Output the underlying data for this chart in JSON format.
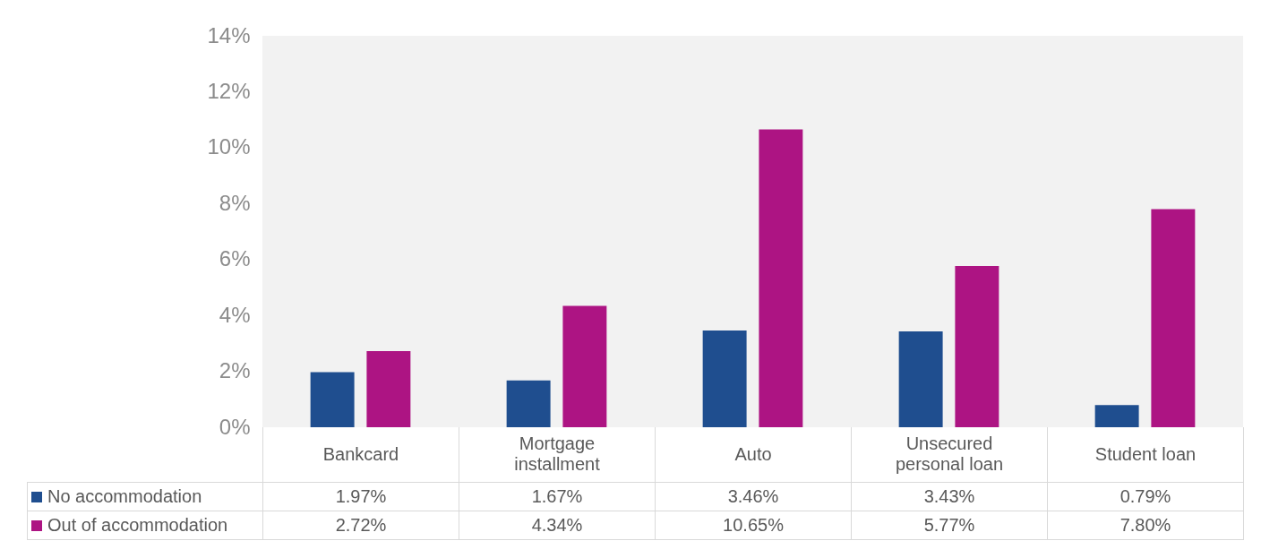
{
  "chart_data": {
    "type": "bar",
    "categories": [
      "Bankcard",
      "Mortgage installment",
      "Auto",
      "Unsecured personal loan",
      "Student loan"
    ],
    "series": [
      {
        "name": "No accommodation",
        "color": "#1f4e8f",
        "values": [
          1.97,
          1.67,
          3.46,
          3.43,
          0.79
        ],
        "value_labels": [
          "1.97%",
          "1.67%",
          "3.46%",
          "3.43%",
          "0.79%"
        ]
      },
      {
        "name": "Out of accommodation",
        "color": "#ad1483",
        "values": [
          2.72,
          4.34,
          10.65,
          5.77,
          7.8
        ],
        "value_labels": [
          "2.72%",
          "4.34%",
          "10.65%",
          "5.77%",
          "7.80%"
        ]
      }
    ],
    "ylim": [
      0,
      14
    ],
    "yticks": [
      {
        "value": 0,
        "label": "0%"
      },
      {
        "value": 2,
        "label": "2%"
      },
      {
        "value": 4,
        "label": "4%"
      },
      {
        "value": 6,
        "label": "6%"
      },
      {
        "value": 8,
        "label": "8%"
      },
      {
        "value": 10,
        "label": "10%"
      },
      {
        "value": 12,
        "label": "12%"
      },
      {
        "value": 14,
        "label": "14%"
      }
    ],
    "grid": false,
    "legend": "bottom"
  }
}
